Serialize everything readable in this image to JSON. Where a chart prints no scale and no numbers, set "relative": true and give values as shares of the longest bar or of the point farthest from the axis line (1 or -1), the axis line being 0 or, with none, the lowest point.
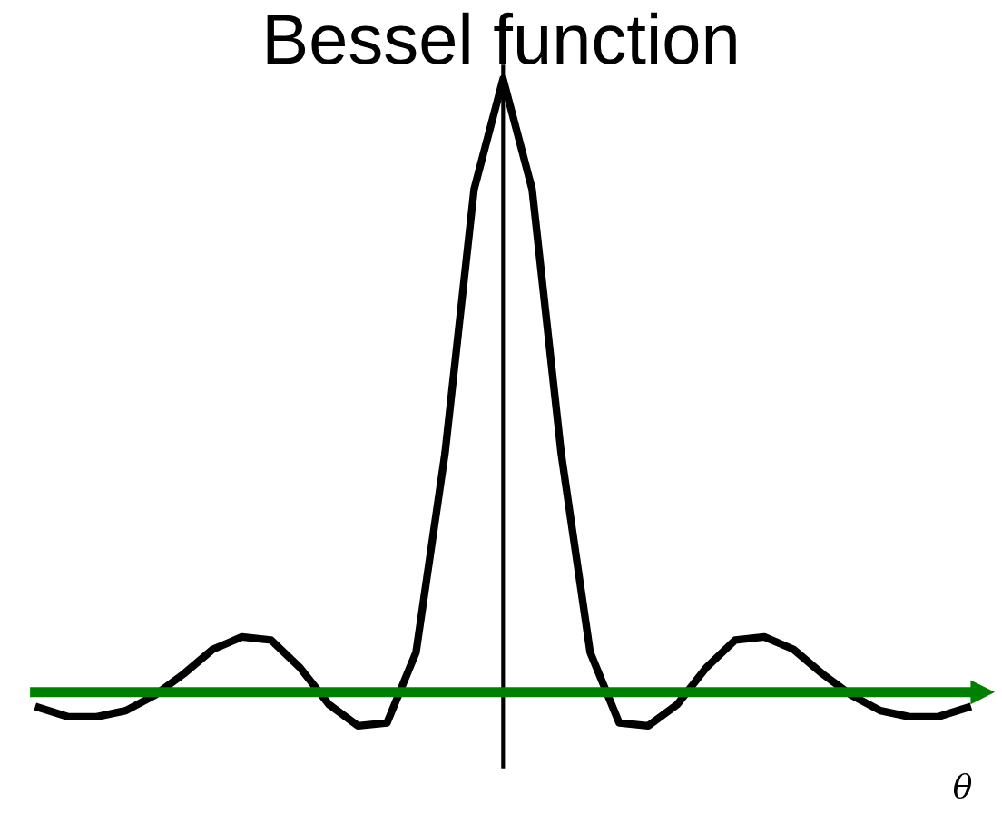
{
  "chart_data": {
    "type": "line",
    "title": "Bessel function",
    "xlabel": "θ",
    "relative": true,
    "categories": [
      null,
      null,
      null,
      null,
      null,
      null,
      null,
      null,
      null,
      null,
      null,
      null,
      null,
      null,
      null,
      null,
      null,
      null,
      null,
      null,
      null,
      null,
      null,
      null,
      null,
      null,
      null,
      null,
      null,
      null,
      null,
      null,
      null
    ],
    "series": [
      {
        "color": "#000000",
        "values": [
          -0.025,
          -0.04,
          -0.04,
          -0.03,
          -0.005,
          0.03,
          0.07,
          0.09,
          0.085,
          0.04,
          -0.02,
          -0.055,
          -0.05,
          0.065,
          0.39,
          0.82,
          1.0,
          0.82,
          0.39,
          0.065,
          -0.05,
          -0.055,
          -0.02,
          0.04,
          0.085,
          0.09,
          0.07,
          0.03,
          -0.005,
          -0.03,
          -0.04,
          -0.04,
          -0.025
        ]
      }
    ],
    "ref_lines": [
      {
        "axis": "y",
        "value": 0,
        "color": "#008000"
      }
    ],
    "grid": false,
    "legend": false,
    "marker": "none",
    "line_style": "solid"
  }
}
